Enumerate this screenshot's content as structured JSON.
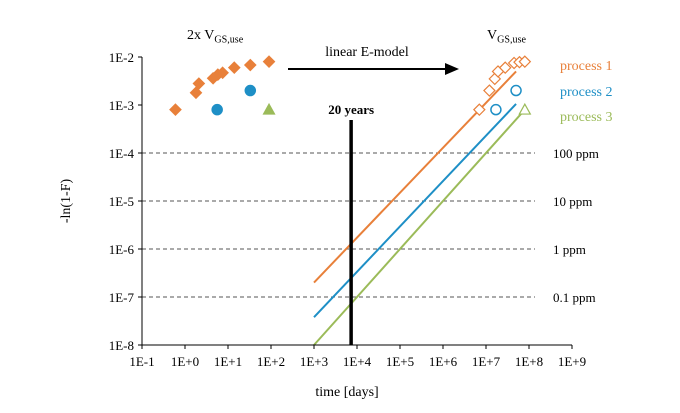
{
  "chart_data": {
    "type": "scatter",
    "title": "",
    "xlabel": "time [days]",
    "ylabel": "-ln(1-F)",
    "x_scale": "log",
    "y_scale": "log",
    "xlim": [
      0.1,
      1000000000
    ],
    "ylim": [
      1e-08,
      0.01
    ],
    "x_tick_values": [
      0.1,
      1,
      10,
      100,
      1000,
      10000,
      100000,
      1000000,
      10000000,
      100000000,
      1000000000
    ],
    "x_tick_labels": [
      "1E-1",
      "1E+0",
      "1E+1",
      "1E+2",
      "1E+3",
      "1E+4",
      "1E+5",
      "1E+6",
      "1E+7",
      "1E+8",
      "1E+9"
    ],
    "y_tick_values": [
      0.01,
      0.001,
      0.0001,
      1e-05,
      1e-06,
      1e-07,
      1e-08
    ],
    "y_tick_labels": [
      "1E-2",
      "1E-3",
      "1E-4",
      "1E-5",
      "1E-6",
      "1E-7",
      "1E-8"
    ],
    "grid": false,
    "legend_position": "right",
    "ppm_lines": [
      {
        "label": "100 ppm",
        "y": 0.0001
      },
      {
        "label": "10 ppm",
        "y": 1e-05
      },
      {
        "label": "1 ppm",
        "y": 1e-06
      },
      {
        "label": "0.1 ppm",
        "y": 1e-07
      }
    ],
    "twenty_years": {
      "label": "20 years",
      "x": 7300
    },
    "annotations": {
      "stress_label_main": "2x V",
      "stress_label_sub": "GS,use",
      "use_label_main": "V",
      "use_label_sub": "GS,use",
      "arrow_label": "linear E-model"
    },
    "series": [
      {
        "name": "process 1",
        "color": "#E8803A",
        "marker": "diamond",
        "stress_points": [
          [
            0.6,
            0.0008
          ],
          [
            1.8,
            0.0018
          ],
          [
            2.1,
            0.0028
          ],
          [
            4.5,
            0.0036
          ],
          [
            5.8,
            0.0043
          ],
          [
            7.5,
            0.0047
          ],
          [
            14,
            0.006
          ],
          [
            33,
            0.0068
          ],
          [
            90,
            0.008
          ]
        ],
        "use_points": [
          [
            7000000,
            0.0008
          ],
          [
            12000000,
            0.002
          ],
          [
            16000000,
            0.0035
          ],
          [
            19000000,
            0.005
          ],
          [
            28000000,
            0.006
          ],
          [
            45000000,
            0.0075
          ],
          [
            60000000,
            0.0078
          ],
          [
            80000000,
            0.008
          ]
        ],
        "fit_line": [
          [
            1000,
            2e-07
          ],
          [
            50000000,
            0.005
          ]
        ]
      },
      {
        "name": "process 2",
        "color": "#1E8FC6",
        "marker": "circle",
        "stress_points": [
          [
            5.6,
            0.0008
          ],
          [
            33,
            0.002
          ]
        ],
        "use_points": [
          [
            17000000,
            0.0008
          ],
          [
            50000000,
            0.002
          ]
        ],
        "fit_line": [
          [
            1000,
            3.8e-08
          ],
          [
            50000000,
            0.00105
          ]
        ]
      },
      {
        "name": "process 3",
        "color": "#9BBB59",
        "marker": "triangle",
        "stress_points": [
          [
            90,
            0.0008
          ]
        ],
        "use_points": [
          [
            80000000,
            0.0008
          ]
        ],
        "fit_line": [
          [
            1000,
            1e-08
          ],
          [
            80000000,
            0.0008
          ]
        ]
      }
    ]
  }
}
